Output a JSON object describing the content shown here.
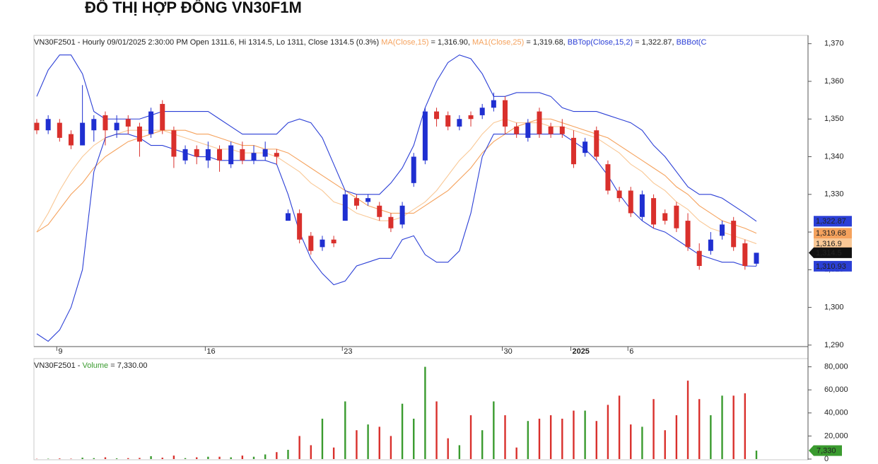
{
  "title": "ĐỒ THỊ HỢP ĐỒNG VN30F1M",
  "chart_data": [
    {
      "type": "candlestick",
      "header": [
        {
          "text": "VN30F2501 - Hourly 09/01/2025 2:30:00 PM Open 1311.6, Hi 1314.5, Lo 1311, Close 1314.5 (0.3%) ",
          "color": "#222222"
        },
        {
          "text": "MA(Close,15)",
          "color": "#f5a25d"
        },
        {
          "text": " = 1,316.90, ",
          "color": "#222222"
        },
        {
          "text": "MA1(Close,25)",
          "color": "#f5a25d"
        },
        {
          "text": " = 1,319.68, ",
          "color": "#222222"
        },
        {
          "text": "BBTop(Close,15,2)",
          "color": "#2b3fd6"
        },
        {
          "text": " = 1,322.87, ",
          "color": "#222222"
        },
        {
          "text": "BBBot(C",
          "color": "#2b3fd6"
        }
      ],
      "categories": [
        null,
        null,
        "9",
        null,
        null,
        null,
        null,
        null,
        null,
        null,
        null,
        null,
        null,
        null,
        null,
        "16",
        null,
        null,
        null,
        null,
        null,
        null,
        null,
        null,
        null,
        null,
        null,
        "23",
        null,
        null,
        null,
        null,
        null,
        null,
        null,
        null,
        null,
        null,
        null,
        null,
        null,
        "30",
        null,
        null,
        null,
        null,
        null,
        "2025",
        null,
        null,
        null,
        null,
        "6",
        null,
        null,
        null,
        null,
        null,
        null,
        null,
        null,
        null,
        null,
        null
      ],
      "open": [
        1349,
        1347,
        1349,
        1346,
        1343,
        1347,
        1351,
        1347,
        1350,
        1348,
        1346,
        1354,
        1347,
        1339,
        1342,
        1339,
        1342,
        1338,
        1342,
        1339,
        1340,
        1341,
        1323,
        1325,
        1319,
        1316,
        1318,
        1323,
        1329,
        1328,
        1327,
        1324,
        1322,
        1333,
        1339,
        1352,
        1351,
        1348,
        1351,
        1351,
        1353,
        1355,
        1348,
        1345,
        1352,
        1348,
        1348,
        1345,
        1341,
        1347,
        1338,
        1331,
        1331,
        1324,
        1329,
        1325,
        1327,
        1323,
        1315,
        1315,
        1319,
        1323,
        1317,
        1311.6
      ],
      "high": [
        1350,
        1351,
        1350,
        1347,
        1359,
        1351,
        1352,
        1351,
        1351,
        1349,
        1353,
        1355,
        1348,
        1343,
        1343,
        1344,
        1343,
        1344,
        1344,
        1343,
        1344,
        1342,
        1326,
        1326,
        1320,
        1319,
        1319,
        1331,
        1330,
        1330,
        1328,
        1325,
        1328,
        1341,
        1353,
        1353,
        1352,
        1351,
        1352,
        1354,
        1357,
        1356,
        1349,
        1350,
        1353,
        1349,
        1350,
        1347,
        1345,
        1348,
        1339,
        1332,
        1332,
        1331,
        1330,
        1326,
        1328,
        1325,
        1317,
        1320,
        1323,
        1324,
        1318,
        1314.5
      ],
      "low": [
        1346,
        1346,
        1344,
        1342,
        1343,
        1344,
        1343,
        1345,
        1346,
        1340,
        1345,
        1346,
        1337,
        1338,
        1338,
        1337,
        1336,
        1337,
        1338,
        1338,
        1339,
        1338,
        1323,
        1317,
        1314,
        1315,
        1316,
        1323,
        1326,
        1327,
        1323,
        1320,
        1321,
        1332,
        1338,
        1348,
        1347,
        1347,
        1348,
        1350,
        1352,
        1346,
        1345,
        1344,
        1345,
        1345,
        1345,
        1337,
        1340,
        1339,
        1330,
        1328,
        1324,
        1323,
        1321,
        1322,
        1320,
        1315,
        1310,
        1314,
        1318,
        1315,
        1310,
        1311
      ],
      "close": [
        1347,
        1350,
        1345,
        1343,
        1349,
        1350,
        1347,
        1349,
        1348,
        1344,
        1352,
        1347,
        1340,
        1342,
        1340,
        1342,
        1339,
        1343,
        1339,
        1341,
        1342,
        1340,
        1325,
        1318,
        1315,
        1318,
        1317,
        1330,
        1327,
        1329,
        1324,
        1321,
        1327,
        1340,
        1352,
        1350,
        1348,
        1350,
        1350,
        1353,
        1355,
        1348,
        1346,
        1349,
        1346,
        1346,
        1346,
        1338,
        1344,
        1340,
        1331,
        1329,
        1325,
        1330,
        1322,
        1323,
        1321,
        1316,
        1311,
        1318,
        1322,
        1316,
        1311,
        1314.5
      ],
      "close_label": "1,314.5",
      "close_color": "#111111",
      "up_color": "#1f2fd1",
      "down_color": "#d9302c",
      "lines": [
        {
          "color": "#f9c896",
          "label": "1,316.9",
          "label_color": "#222222",
          "values": [
            1320,
            1325,
            1331,
            1336,
            1340,
            1343,
            1345,
            1346,
            1347,
            1347,
            1347,
            1347,
            1346,
            1345,
            1344,
            1343,
            1342,
            1342,
            1341,
            1341,
            1341,
            1340,
            1338,
            1336,
            1333,
            1331,
            1328,
            1327,
            1325,
            1324,
            1323,
            1323,
            1324,
            1326,
            1328,
            1331,
            1335,
            1339,
            1342,
            1346,
            1349,
            1350,
            1349,
            1349,
            1349,
            1348,
            1348,
            1347,
            1346,
            1345,
            1343,
            1341,
            1338,
            1336,
            1333,
            1331,
            1328,
            1326,
            1323,
            1321,
            1320,
            1319,
            1318,
            1316.9
          ]
        },
        {
          "color": "#f5a25d",
          "label": "1,319.68",
          "label_color": "#222222",
          "values": [
            1320,
            1322,
            1326,
            1330,
            1333,
            1337,
            1340,
            1342,
            1344,
            1345,
            1346,
            1347,
            1347,
            1347,
            1346,
            1346,
            1345,
            1344,
            1343,
            1343,
            1342,
            1342,
            1341,
            1339,
            1337,
            1335,
            1333,
            1331,
            1329,
            1327,
            1326,
            1325,
            1325,
            1325,
            1327,
            1329,
            1331,
            1334,
            1337,
            1341,
            1344,
            1346,
            1348,
            1349,
            1350,
            1350,
            1349,
            1348,
            1347,
            1346,
            1345,
            1343,
            1341,
            1339,
            1337,
            1335,
            1332,
            1330,
            1327,
            1325,
            1323,
            1322,
            1321,
            1319.68
          ]
        },
        {
          "color": "#2b3fd6",
          "label": "1,322.87",
          "label_color": "#ffffff",
          "values": [
            1356,
            1363,
            1367,
            1367,
            1362,
            1352,
            1350,
            1350,
            1350,
            1350,
            1351,
            1352,
            1352,
            1352,
            1352,
            1352,
            1350,
            1348,
            1346,
            1346,
            1346,
            1346,
            1349,
            1350,
            1349,
            1345,
            1338,
            1331,
            1330,
            1330,
            1330,
            1333,
            1337,
            1343,
            1353,
            1360,
            1365,
            1367,
            1366,
            1362,
            1356,
            1356,
            1357,
            1357,
            1357,
            1356,
            1353,
            1352,
            1352,
            1352,
            1351,
            1350,
            1349,
            1347,
            1343,
            1340,
            1336,
            1332,
            1330,
            1330,
            1329,
            1327,
            1325,
            1322.87
          ]
        },
        {
          "color": "#2b3fd6",
          "label": "1,310.93",
          "label_color": "#ffffff",
          "values": [
            1293,
            1291,
            1294,
            1300,
            1310,
            1336,
            1345,
            1346,
            1346,
            1345,
            1343,
            1343,
            1342,
            1341,
            1340,
            1340,
            1339,
            1339,
            1339,
            1339,
            1339,
            1338,
            1330,
            1320,
            1313,
            1309,
            1306,
            1307,
            1311,
            1312,
            1313,
            1313,
            1318,
            1319,
            1314,
            1312,
            1312,
            1315,
            1325,
            1340,
            1346,
            1346,
            1346,
            1346,
            1346,
            1346,
            1346,
            1344,
            1342,
            1339,
            1335,
            1330,
            1326,
            1323,
            1321,
            1320,
            1318,
            1316,
            1314,
            1313,
            1312,
            1312,
            1311,
            1310.93
          ]
        }
      ],
      "ylim": [
        1289.6,
        1372.2
      ],
      "yticks": [
        {
          "value": 1290,
          "label": "1,290"
        },
        {
          "value": 1300,
          "label": "1,300"
        },
        {
          "value": 1310,
          "label": "1,310"
        },
        {
          "value": 1320,
          "label": "1,320"
        },
        {
          "value": 1330,
          "label": "1,330"
        },
        {
          "value": 1340,
          "label": "1,340"
        },
        {
          "value": 1350,
          "label": "1,350"
        },
        {
          "value": 1360,
          "label": "1,360"
        },
        {
          "value": 1370,
          "label": "1,370"
        }
      ]
    },
    {
      "type": "bar",
      "header": [
        {
          "text": "VN30F2501 - ",
          "color": "#222222"
        },
        {
          "text": "Volume",
          "color": "#3a9b2f"
        },
        {
          "text": " = 7,330.00",
          "color": "#222222"
        }
      ],
      "values": [
        200,
        300,
        500,
        300,
        1200,
        800,
        1500,
        600,
        800,
        1000,
        2500,
        1200,
        3000,
        800,
        1500,
        2000,
        2000,
        1500,
        3000,
        2000,
        4000,
        6000,
        8000,
        20000,
        12000,
        35000,
        10000,
        50000,
        25000,
        30000,
        28000,
        20000,
        48000,
        35000,
        80000,
        50000,
        18000,
        12000,
        38000,
        25000,
        50000,
        38000,
        10000,
        33000,
        35000,
        38000,
        35000,
        42000,
        42000,
        33000,
        47000,
        55000,
        30000,
        28000,
        52000,
        25000,
        38000,
        68000,
        52000,
        38000,
        55000,
        55000,
        57000,
        7330
      ],
      "last_label": "7,330",
      "up_color": "#3a9b2f",
      "down_color": "#d9302c",
      "ylim": [
        0,
        86500
      ],
      "yticks": [
        0,
        {
          "value": 20000,
          "label": "20,000"
        },
        {
          "value": 40000,
          "label": "40,000"
        },
        {
          "value": 60000,
          "label": "60,000"
        },
        {
          "value": 80000,
          "label": "80,000"
        }
      ]
    }
  ]
}
